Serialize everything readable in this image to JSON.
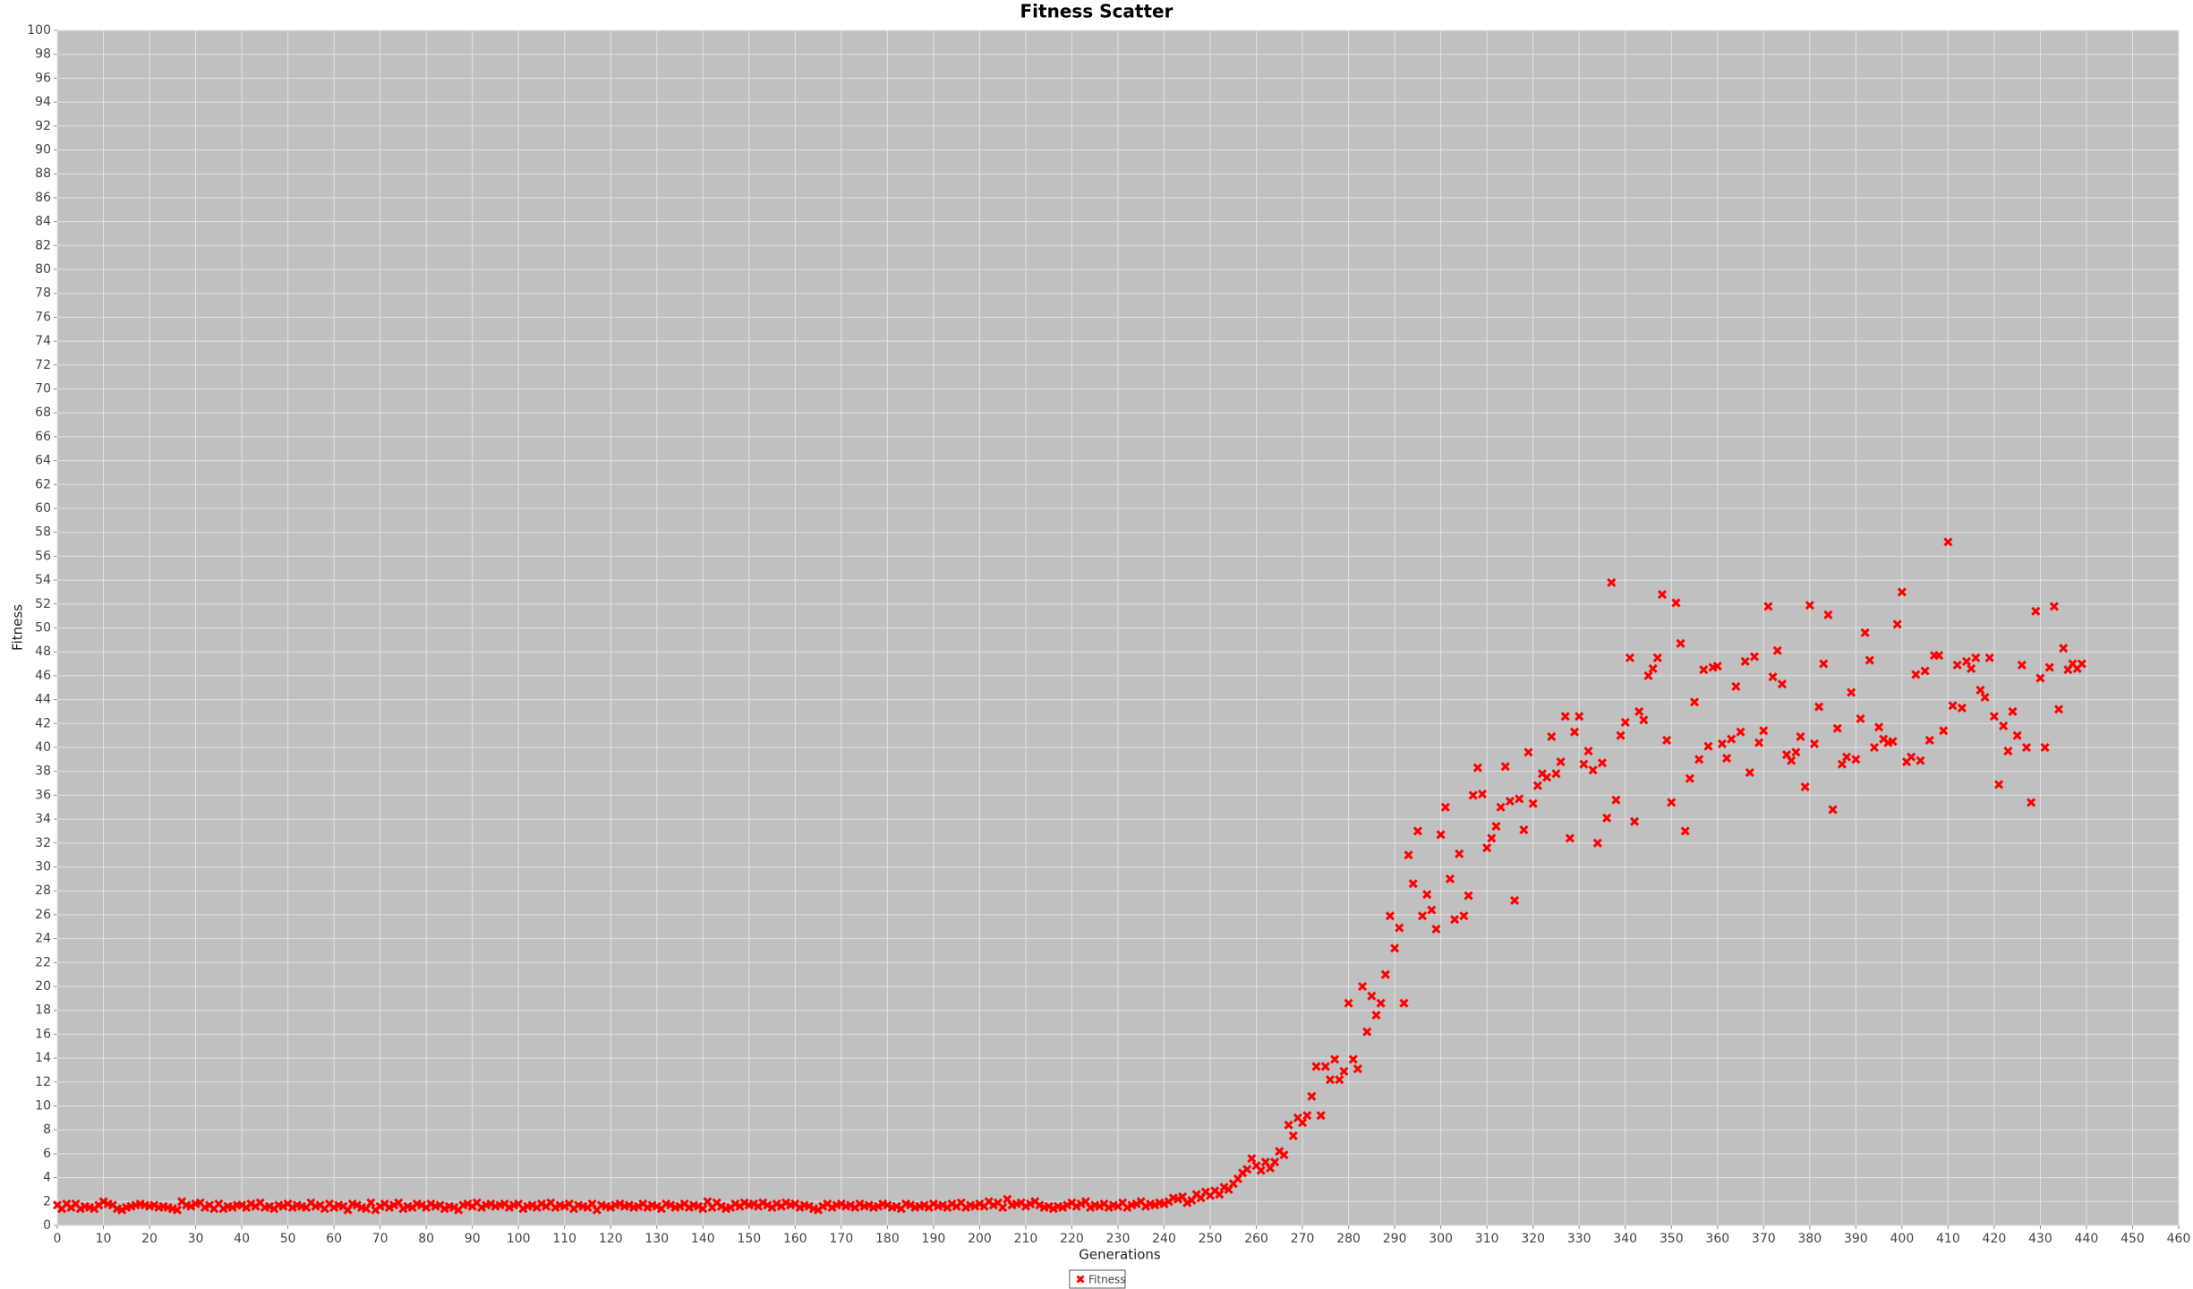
{
  "chart_data": {
    "type": "scatter",
    "title": "Fitness Scatter",
    "x_label": "Generations",
    "y_label": "Fitness",
    "x": [
      0,
      1,
      2,
      3,
      4,
      5,
      6,
      7,
      8,
      9,
      10,
      11,
      12,
      13,
      14,
      15,
      16,
      17,
      18,
      19,
      20,
      21,
      22,
      23,
      24,
      25,
      26,
      27,
      28,
      29,
      30,
      31,
      32,
      33,
      34,
      35,
      36,
      37,
      38,
      39,
      40,
      41,
      42,
      43,
      44,
      45,
      46,
      47,
      48,
      49,
      50,
      51,
      52,
      53,
      54,
      55,
      56,
      57,
      58,
      59,
      60,
      61,
      62,
      63,
      64,
      65,
      66,
      67,
      68,
      69,
      70,
      71,
      72,
      73,
      74,
      75,
      76,
      77,
      78,
      79,
      80,
      81,
      82,
      83,
      84,
      85,
      86,
      87,
      88,
      89,
      90,
      91,
      92,
      93,
      94,
      95,
      96,
      97,
      98,
      99,
      100,
      101,
      102,
      103,
      104,
      105,
      106,
      107,
      108,
      109,
      110,
      111,
      112,
      113,
      114,
      115,
      116,
      117,
      118,
      119,
      120,
      121,
      122,
      123,
      124,
      125,
      126,
      127,
      128,
      129,
      130,
      131,
      132,
      133,
      134,
      135,
      136,
      137,
      138,
      139,
      140,
      141,
      142,
      143,
      144,
      145,
      146,
      147,
      148,
      149,
      150,
      151,
      152,
      153,
      154,
      155,
      156,
      157,
      158,
      159,
      160,
      161,
      162,
      163,
      164,
      165,
      166,
      167,
      168,
      169,
      170,
      171,
      172,
      173,
      174,
      175,
      176,
      177,
      178,
      179,
      180,
      181,
      182,
      183,
      184,
      185,
      186,
      187,
      188,
      189,
      190,
      191,
      192,
      193,
      194,
      195,
      196,
      197,
      198,
      199,
      200,
      201,
      202,
      203,
      204,
      205,
      206,
      207,
      208,
      209,
      210,
      211,
      212,
      213,
      214,
      215,
      216,
      217,
      218,
      219,
      220,
      221,
      222,
      223,
      224,
      225,
      226,
      227,
      228,
      229,
      230,
      231,
      232,
      233,
      234,
      235,
      236,
      237,
      238,
      239,
      240,
      241,
      242,
      243,
      244,
      245,
      246,
      247,
      248,
      249,
      250,
      251,
      252,
      253,
      254,
      255,
      256,
      257,
      258,
      259,
      260,
      261,
      262,
      263,
      264,
      265,
      266,
      267,
      268,
      269,
      270,
      271,
      272,
      273,
      274,
      275,
      276,
      277,
      278,
      279,
      280,
      281,
      282,
      283,
      284,
      285,
      286,
      287,
      288,
      289,
      290,
      291,
      292,
      293,
      294,
      295,
      296,
      297,
      298,
      299,
      300,
      301,
      302,
      303,
      304,
      305,
      306,
      307,
      308,
      309,
      310,
      311,
      312,
      313,
      314,
      315,
      316,
      317,
      318,
      319,
      320,
      321,
      322,
      323,
      324,
      325,
      326,
      327,
      328,
      329,
      330,
      331,
      332,
      333,
      334,
      335,
      336,
      337,
      338,
      339,
      340,
      341,
      342,
      343,
      344,
      345,
      346,
      347,
      348,
      349,
      350,
      351,
      352,
      353,
      354,
      355,
      356,
      357,
      358,
      359,
      360,
      361,
      362,
      363,
      364,
      365,
      366,
      367,
      368,
      369,
      370,
      371,
      372,
      373,
      374,
      375,
      376,
      377,
      378,
      379,
      380,
      381,
      382,
      383,
      384,
      385,
      386,
      387,
      388,
      389,
      390,
      391,
      392,
      393,
      394,
      395,
      396,
      397,
      398,
      399,
      400,
      401,
      402,
      403,
      404,
      405,
      406,
      407,
      408,
      409,
      410,
      411,
      412,
      413,
      414,
      415,
      416,
      417,
      418,
      419,
      420,
      421,
      422,
      423,
      424,
      425,
      426,
      427,
      428,
      429,
      430,
      431,
      432,
      433,
      434,
      435,
      436,
      437,
      438,
      439
    ],
    "series": [
      {
        "name": "Fitness",
        "color": "#ff0000",
        "values": [
          1.7,
          1.4,
          1.8,
          1.5,
          1.8,
          1.4,
          1.6,
          1.5,
          1.4,
          1.7,
          2.0,
          1.8,
          1.7,
          1.4,
          1.3,
          1.5,
          1.6,
          1.7,
          1.8,
          1.7,
          1.6,
          1.7,
          1.5,
          1.6,
          1.5,
          1.4,
          1.3,
          2.0,
          1.7,
          1.6,
          1.8,
          1.9,
          1.5,
          1.7,
          1.4,
          1.8,
          1.4,
          1.6,
          1.5,
          1.7,
          1.7,
          1.5,
          1.8,
          1.6,
          1.9,
          1.5,
          1.6,
          1.4,
          1.7,
          1.6,
          1.8,
          1.5,
          1.7,
          1.6,
          1.5,
          1.9,
          1.6,
          1.7,
          1.4,
          1.8,
          1.5,
          1.7,
          1.6,
          1.3,
          1.8,
          1.7,
          1.5,
          1.4,
          1.9,
          1.3,
          1.6,
          1.8,
          1.5,
          1.7,
          1.9,
          1.4,
          1.6,
          1.5,
          1.8,
          1.7,
          1.5,
          1.8,
          1.6,
          1.7,
          1.4,
          1.6,
          1.5,
          1.3,
          1.7,
          1.8,
          1.6,
          1.9,
          1.5,
          1.7,
          1.8,
          1.6,
          1.7,
          1.8,
          1.5,
          1.7,
          1.8,
          1.4,
          1.6,
          1.7,
          1.5,
          1.8,
          1.6,
          1.9,
          1.5,
          1.7,
          1.6,
          1.8,
          1.4,
          1.7,
          1.6,
          1.5,
          1.8,
          1.3,
          1.7,
          1.6,
          1.5,
          1.7,
          1.8,
          1.6,
          1.7,
          1.5,
          1.6,
          1.8,
          1.5,
          1.7,
          1.6,
          1.4,
          1.8,
          1.7,
          1.5,
          1.6,
          1.8,
          1.5,
          1.7,
          1.6,
          1.4,
          2.0,
          1.5,
          1.9,
          1.6,
          1.4,
          1.5,
          1.8,
          1.6,
          1.9,
          1.7,
          1.8,
          1.6,
          1.9,
          1.7,
          1.5,
          1.8,
          1.6,
          1.9,
          1.7,
          1.8,
          1.5,
          1.7,
          1.6,
          1.4,
          1.3,
          1.6,
          1.8,
          1.5,
          1.7,
          1.8,
          1.6,
          1.7,
          1.5,
          1.8,
          1.6,
          1.7,
          1.5,
          1.6,
          1.8,
          1.7,
          1.5,
          1.6,
          1.4,
          1.8,
          1.7,
          1.5,
          1.6,
          1.7,
          1.5,
          1.8,
          1.6,
          1.7,
          1.5,
          1.8,
          1.6,
          1.9,
          1.5,
          1.7,
          1.6,
          1.8,
          1.6,
          2.0,
          1.7,
          1.9,
          1.5,
          2.2,
          1.7,
          1.8,
          1.9,
          1.6,
          1.8,
          2.0,
          1.7,
          1.5,
          1.6,
          1.4,
          1.6,
          1.5,
          1.7,
          1.9,
          1.6,
          1.8,
          2.0,
          1.5,
          1.7,
          1.6,
          1.8,
          1.5,
          1.7,
          1.6,
          1.9,
          1.5,
          1.7,
          1.8,
          2.0,
          1.6,
          1.8,
          1.7,
          1.9,
          1.8,
          2.0,
          2.3,
          2.2,
          2.4,
          1.9,
          2.1,
          2.6,
          2.3,
          2.8,
          2.5,
          2.9,
          2.6,
          3.2,
          3.0,
          3.5,
          3.9,
          4.4,
          4.7,
          5.6,
          5.0,
          4.6,
          5.3,
          4.8,
          5.3,
          6.2,
          5.9,
          8.4,
          7.5,
          9.0,
          8.6,
          9.2,
          10.8,
          13.3,
          9.2,
          13.3,
          12.2,
          13.9,
          12.2,
          12.9,
          18.6,
          13.9,
          13.1,
          20.0,
          16.2,
          19.2,
          17.6,
          18.6,
          21.0,
          25.9,
          23.2,
          24.9,
          18.6,
          31.0,
          28.6,
          33.0,
          25.9,
          27.7,
          26.4,
          24.8,
          32.7,
          35.0,
          29.0,
          25.6,
          31.1,
          25.9,
          27.6,
          36.0,
          38.3,
          36.1,
          31.6,
          32.4,
          33.4,
          35.0,
          38.4,
          35.5,
          27.2,
          35.7,
          33.1,
          39.6,
          35.3,
          36.8,
          37.8,
          37.5,
          40.9,
          37.8,
          38.8,
          42.6,
          32.4,
          41.3,
          42.6,
          38.6,
          39.7,
          38.1,
          32.0,
          38.7,
          34.1,
          53.8,
          35.6,
          41.0,
          42.1,
          47.5,
          33.8,
          43.0,
          42.3,
          46.0,
          46.6,
          47.5,
          52.8,
          40.6,
          35.4,
          52.1,
          48.7,
          33.0,
          37.4,
          43.8,
          39.0,
          46.5,
          40.1,
          46.7,
          46.8,
          40.3,
          39.1,
          40.7,
          45.1,
          41.3,
          47.2,
          37.9,
          47.6,
          40.4,
          41.4,
          51.8,
          45.9,
          48.1,
          45.3,
          39.4,
          38.9,
          39.6,
          40.9,
          36.7,
          51.9,
          40.3,
          43.4,
          47.0,
          51.1,
          34.8,
          41.6,
          38.6,
          39.2,
          44.6,
          39.0,
          42.4,
          49.6,
          47.3,
          40.0,
          41.7,
          40.7,
          40.4,
          40.5,
          50.3,
          53.0,
          38.8,
          39.2,
          46.1,
          38.9,
          46.4,
          40.6,
          47.7,
          47.7,
          41.4,
          57.2,
          43.5,
          46.9,
          43.3,
          47.2,
          46.6,
          47.5,
          44.8,
          44.2,
          47.5,
          42.6,
          36.9,
          41.8,
          39.7,
          43.0,
          41.0,
          46.9,
          40.0,
          35.4,
          51.4,
          45.8,
          40.0,
          46.7,
          51.8,
          43.2,
          48.3,
          46.5,
          47.0,
          46.6,
          47.0
        ]
      }
    ],
    "xlim": [
      0,
      460
    ],
    "xticks": [
      0,
      10,
      20,
      30,
      40,
      50,
      60,
      70,
      80,
      90,
      100,
      110,
      120,
      130,
      140,
      150,
      160,
      170,
      180,
      190,
      200,
      210,
      220,
      230,
      240,
      250,
      260,
      270,
      280,
      290,
      300,
      310,
      320,
      330,
      340,
      350,
      360,
      370,
      380,
      390,
      400,
      410,
      420,
      430,
      440,
      450,
      460
    ],
    "ylim": [
      0,
      100
    ],
    "yticks": [
      0,
      2,
      4,
      6,
      8,
      10,
      12,
      14,
      16,
      18,
      20,
      22,
      24,
      26,
      28,
      30,
      32,
      34,
      36,
      38,
      40,
      42,
      44,
      46,
      48,
      50,
      52,
      54,
      56,
      58,
      60,
      62,
      64,
      66,
      68,
      70,
      72,
      74,
      76,
      78,
      80,
      82,
      84,
      86,
      88,
      90,
      92,
      94,
      96,
      98,
      100
    ],
    "grid": true,
    "legend": "bottom"
  }
}
